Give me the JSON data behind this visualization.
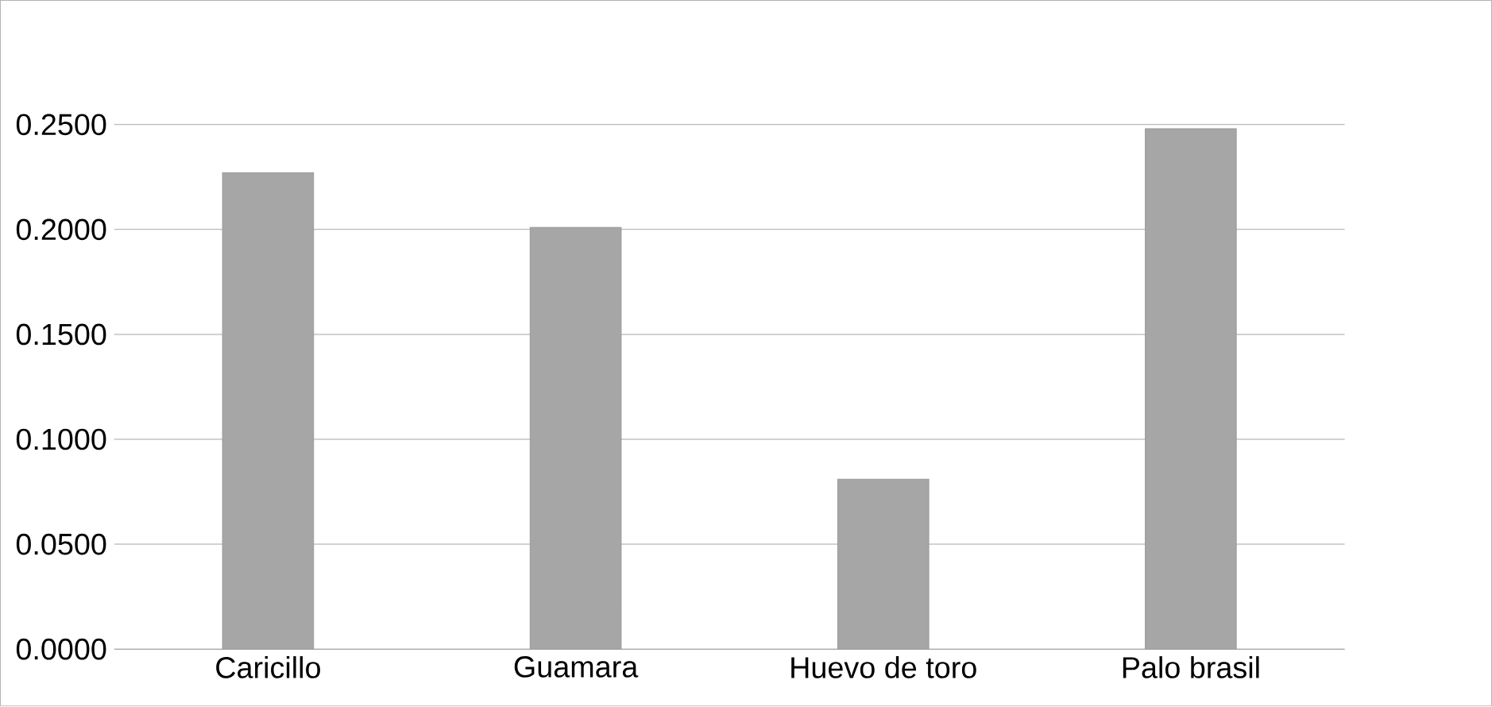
{
  "chart_data": {
    "type": "bar",
    "categories": [
      "Caricillo",
      "Guamara",
      "Huevo de toro",
      "Palo brasil"
    ],
    "values": [
      0.227,
      0.201,
      0.081,
      0.248
    ],
    "color": "#a6a6a6",
    "ylim": [
      0,
      0.25
    ],
    "yticks": [
      {
        "value": 0,
        "label": "0.0000"
      },
      {
        "value": 0.05,
        "label": "0.0500"
      },
      {
        "value": 0.1,
        "label": "0.1000"
      },
      {
        "value": 0.15,
        "label": "0.1500"
      },
      {
        "value": 0.2,
        "label": "0.2000"
      },
      {
        "value": 0.25,
        "label": "0.2500"
      }
    ],
    "grid": "y"
  }
}
